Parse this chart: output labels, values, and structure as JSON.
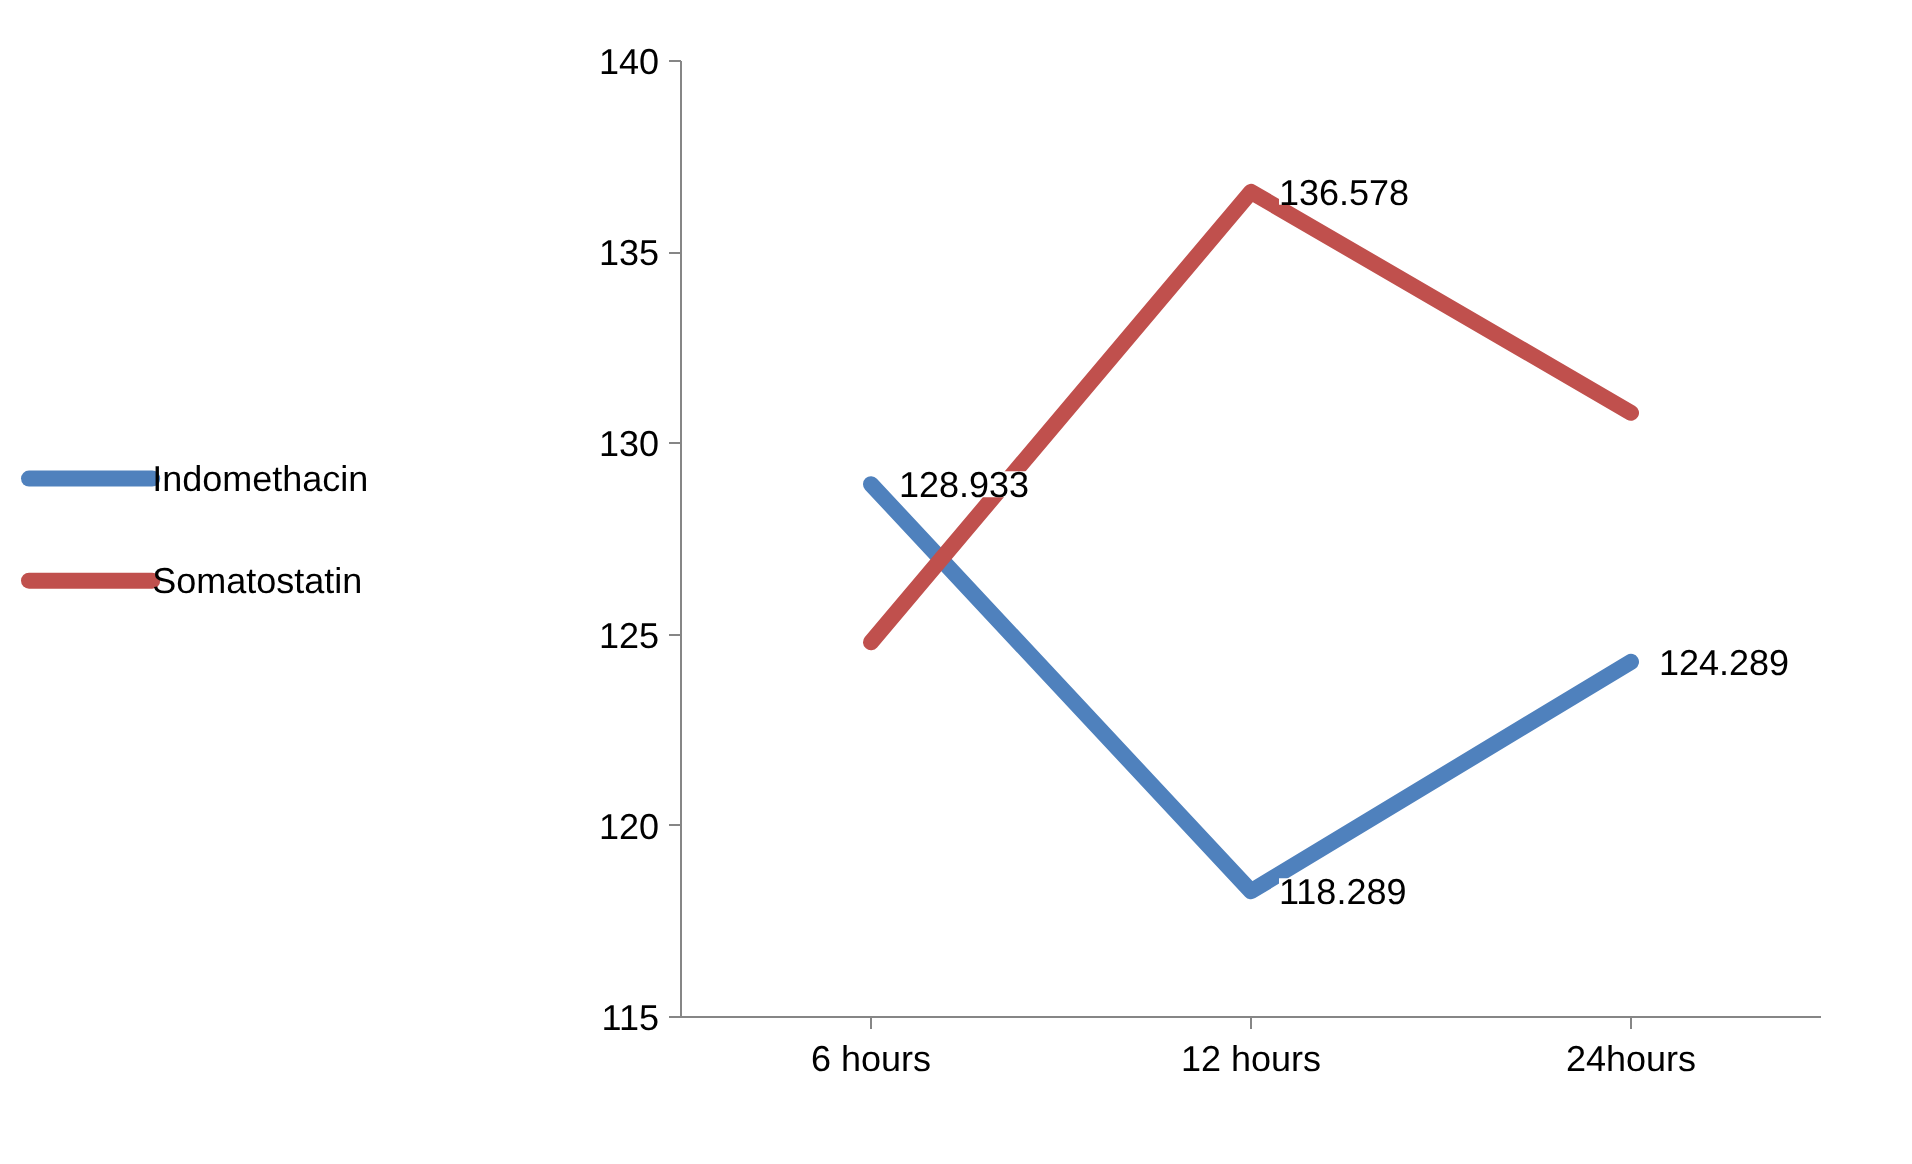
{
  "chart_data": {
    "type": "line",
    "categories": [
      "6 hours",
      "12 hours",
      "24hours"
    ],
    "series": [
      {
        "name": "Indomethacin",
        "color": "#4f81bd",
        "values": [
          128.933,
          118.289,
          124.289
        ],
        "value_labels": [
          "128.933",
          "118.289",
          "124.289"
        ]
      },
      {
        "name": "Somatostatin",
        "color": "#c0504d",
        "values": [
          124.8,
          136.578,
          130.8
        ],
        "value_labels": [
          null,
          "136.578",
          null
        ]
      }
    ],
    "ylim": [
      115,
      140
    ],
    "yticks": [
      115,
      120,
      125,
      130,
      135,
      140
    ],
    "grid": false,
    "legend": "left",
    "marker": "none",
    "line_style": "solid"
  }
}
